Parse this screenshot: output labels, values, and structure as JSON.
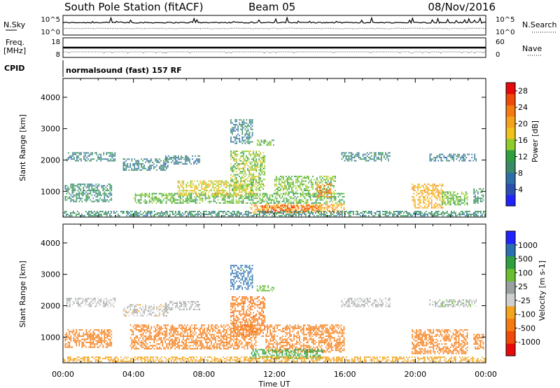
{
  "header": {
    "station": "South Pole Station (fitACF)",
    "beam": "Beam 05",
    "date": "08/Nov/2016"
  },
  "noise_panel": {
    "left_label": "N.Sky",
    "left_ticks": [
      "10^5",
      "10^0"
    ],
    "right_label": "N.Search",
    "right_ticks": [
      "10^5",
      "10^0"
    ]
  },
  "freq_panel": {
    "left_label_1": "Freq.",
    "left_label_2": "[MHz]",
    "left_ticks": [
      "18",
      "8"
    ],
    "right_label": "Nave",
    "right_ticks": [
      "60",
      "0"
    ]
  },
  "cpid_panel": {
    "label": "CPID",
    "program": "normalsound (fast) 157 RF"
  },
  "colors": {
    "power_scale": [
      "#2222ff",
      "#2a4fb0",
      "#2f6fa8",
      "#3a8a66",
      "#2f9f3f",
      "#8fcc2a",
      "#f0c21a",
      "#f5a31a",
      "#f57a10",
      "#f04a0a",
      "#e80a0a"
    ],
    "velocity_scale": [
      "#e80a0a",
      "#f04a0a",
      "#f57a10",
      "#f5a31a",
      "#cfcfcf",
      "#9aa0a0",
      "#6abf30",
      "#2f9f3f",
      "#2a6fb0",
      "#2222ff"
    ]
  },
  "chart_data": [
    {
      "type": "heatmap",
      "name": "power",
      "xlabel": "Time UT",
      "ylabel": "Slant Range [km]",
      "xlim": [
        "00:00",
        "24:00"
      ],
      "ylim": [
        180,
        4600
      ],
      "x_ticks": [
        "00:00",
        "04:00",
        "08:00",
        "12:00",
        "16:00",
        "20:00",
        "00:00"
      ],
      "y_ticks": [
        1000,
        2000,
        3000,
        4000
      ],
      "colorbar": {
        "label": "Power [dB]",
        "ticks": [
          4,
          8,
          12,
          16,
          20,
          24,
          28
        ],
        "range": [
          0,
          30
        ]
      },
      "regions": [
        {
          "t0": 0.2,
          "t1": 3.0,
          "r0": 1950,
          "r1": 2250,
          "level": 8
        },
        {
          "t0": 3.4,
          "t1": 6.0,
          "r0": 1650,
          "r1": 2050,
          "level": 8
        },
        {
          "t0": 5.8,
          "t1": 7.8,
          "r0": 1850,
          "r1": 2150,
          "level": 7
        },
        {
          "t0": 15.8,
          "t1": 18.6,
          "r0": 1950,
          "r1": 2250,
          "level": 8
        },
        {
          "t0": 20.8,
          "t1": 23.5,
          "r0": 1950,
          "r1": 2200,
          "level": 7
        },
        {
          "t0": 0.1,
          "t1": 2.8,
          "r0": 650,
          "r1": 1250,
          "level": 9
        },
        {
          "t0": 4.0,
          "t1": 16.0,
          "r0": 600,
          "r1": 950,
          "level": 13
        },
        {
          "t0": 6.5,
          "t1": 11.0,
          "r0": 850,
          "r1": 1350,
          "level": 17
        },
        {
          "t0": 9.5,
          "t1": 11.5,
          "r0": 1000,
          "r1": 2300,
          "level": 15
        },
        {
          "t0": 12.0,
          "t1": 15.5,
          "r0": 900,
          "r1": 1500,
          "level": 14
        },
        {
          "t0": 9.5,
          "t1": 10.8,
          "r0": 2500,
          "r1": 3300,
          "level": 8
        },
        {
          "t0": 11.0,
          "t1": 12.0,
          "r0": 2450,
          "r1": 2650,
          "level": 13
        },
        {
          "t0": 10.6,
          "t1": 16.0,
          "r0": 300,
          "r1": 600,
          "level": 21
        },
        {
          "t0": 11.3,
          "t1": 13.5,
          "r0": 320,
          "r1": 560,
          "level": 27
        },
        {
          "t0": 13.5,
          "t1": 14.6,
          "r0": 330,
          "r1": 580,
          "level": 25
        },
        {
          "t0": 14.4,
          "t1": 15.3,
          "r0": 800,
          "r1": 1250,
          "level": 24
        },
        {
          "t0": 19.8,
          "t1": 21.6,
          "r0": 450,
          "r1": 1250,
          "level": 20
        },
        {
          "t0": 21.5,
          "t1": 23.0,
          "r0": 550,
          "r1": 1000,
          "level": 14
        },
        {
          "t0": 23.3,
          "t1": 23.9,
          "r0": 600,
          "r1": 1100,
          "level": 10
        },
        {
          "t0": 0.0,
          "t1": 24.0,
          "r0": 200,
          "r1": 380,
          "level": 9
        }
      ]
    },
    {
      "type": "heatmap",
      "name": "velocity",
      "xlabel": "Time UT",
      "ylabel": "Slant Range [km]",
      "xlim": [
        "00:00",
        "24:00"
      ],
      "ylim": [
        180,
        4600
      ],
      "x_ticks": [
        "00:00",
        "04:00",
        "08:00",
        "12:00",
        "16:00",
        "20:00",
        "00:00"
      ],
      "y_ticks": [
        1000,
        2000,
        3000,
        4000
      ],
      "colorbar": {
        "label": "Velocity [m s-1]",
        "ticks": [
          1000,
          500,
          100,
          25,
          -25,
          -100,
          -500,
          -1000
        ],
        "range": [
          -1200,
          1200
        ]
      },
      "regions": [
        {
          "t0": 0.2,
          "t1": 3.0,
          "r0": 1950,
          "r1": 2250,
          "vel": 0
        },
        {
          "t0": 3.4,
          "t1": 6.0,
          "r0": 1650,
          "r1": 2050,
          "vel": -10
        },
        {
          "t0": 5.8,
          "t1": 7.8,
          "r0": 1850,
          "r1": 2150,
          "vel": 5
        },
        {
          "t0": 15.8,
          "t1": 18.6,
          "r0": 1950,
          "r1": 2250,
          "vel": 0
        },
        {
          "t0": 20.8,
          "t1": 23.5,
          "r0": 1950,
          "r1": 2200,
          "vel": 10
        },
        {
          "t0": 0.1,
          "t1": 2.8,
          "r0": 650,
          "r1": 1250,
          "vel": -300
        },
        {
          "t0": 3.8,
          "t1": 11.0,
          "r0": 600,
          "r1": 1400,
          "vel": -250
        },
        {
          "t0": 9.5,
          "t1": 11.5,
          "r0": 1000,
          "r1": 2300,
          "vel": -400
        },
        {
          "t0": 11.5,
          "t1": 16.0,
          "r0": 500,
          "r1": 1400,
          "vel": -300
        },
        {
          "t0": 9.5,
          "t1": 10.8,
          "r0": 2500,
          "r1": 3300,
          "vel": 700
        },
        {
          "t0": 11.0,
          "t1": 12.0,
          "r0": 2450,
          "r1": 2650,
          "vel": 80
        },
        {
          "t0": 10.6,
          "t1": 14.8,
          "r0": 300,
          "r1": 620,
          "vel": 120
        },
        {
          "t0": 19.8,
          "t1": 23.0,
          "r0": 450,
          "r1": 1250,
          "vel": -350
        },
        {
          "t0": 23.3,
          "t1": 23.9,
          "r0": 600,
          "r1": 1100,
          "vel": -200
        },
        {
          "t0": 0.0,
          "t1": 24.0,
          "r0": 200,
          "r1": 380,
          "vel": -60
        }
      ]
    }
  ]
}
